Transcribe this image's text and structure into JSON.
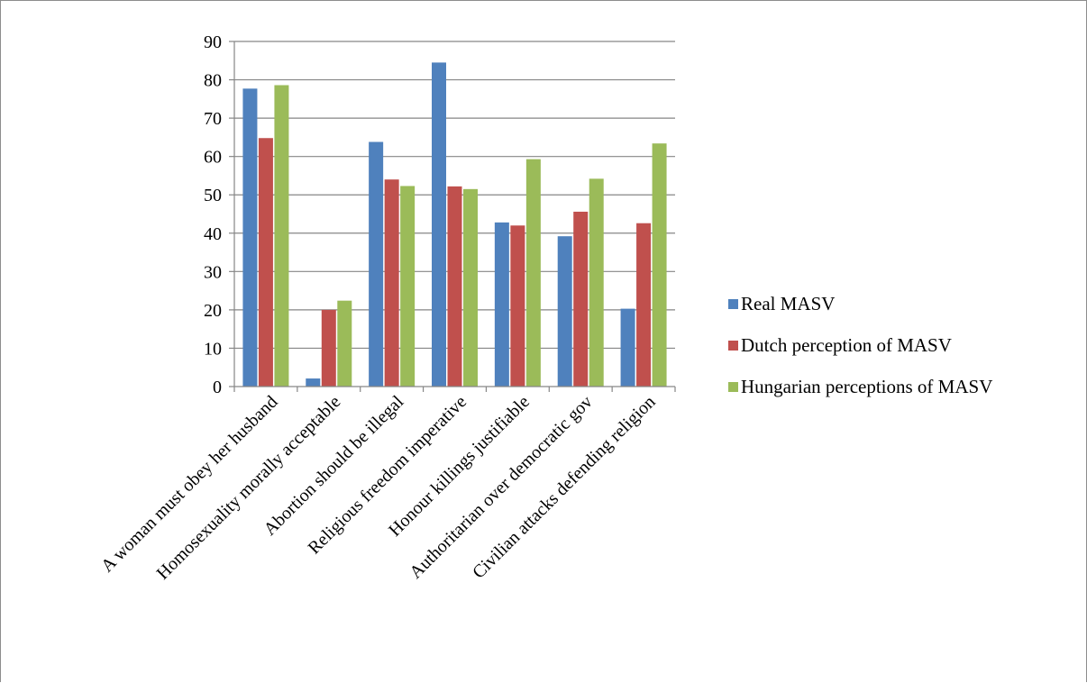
{
  "chart_data": {
    "type": "bar",
    "title": "",
    "xlabel": "",
    "ylabel": "",
    "ylim": [
      0,
      90
    ],
    "yticks": [
      0,
      10,
      20,
      30,
      40,
      50,
      60,
      70,
      80,
      90
    ],
    "grid": true,
    "legend_position": "right",
    "categories": [
      "A woman must obey her husband",
      "Homosexuality morally acceptable",
      "Abortion should be illegal",
      "Religious freedom imperative",
      "Honour killings justifiable",
      "Authoritarian over democratic gov",
      "Civilian attacks defending religion"
    ],
    "series": [
      {
        "name": "Real MASV",
        "color": "#4F81BD",
        "values": [
          77.7,
          2.1,
          63.8,
          84.5,
          42.8,
          39.2,
          20.3
        ]
      },
      {
        "name": "Dutch perception of MASV",
        "color": "#C0504D",
        "values": [
          64.8,
          20.0,
          54.0,
          52.2,
          42.0,
          45.6,
          42.6
        ]
      },
      {
        "name": "Hungarian perceptions of MASV",
        "color": "#9BBB59",
        "values": [
          78.6,
          22.4,
          52.3,
          51.5,
          59.3,
          54.2,
          63.4
        ]
      }
    ]
  }
}
